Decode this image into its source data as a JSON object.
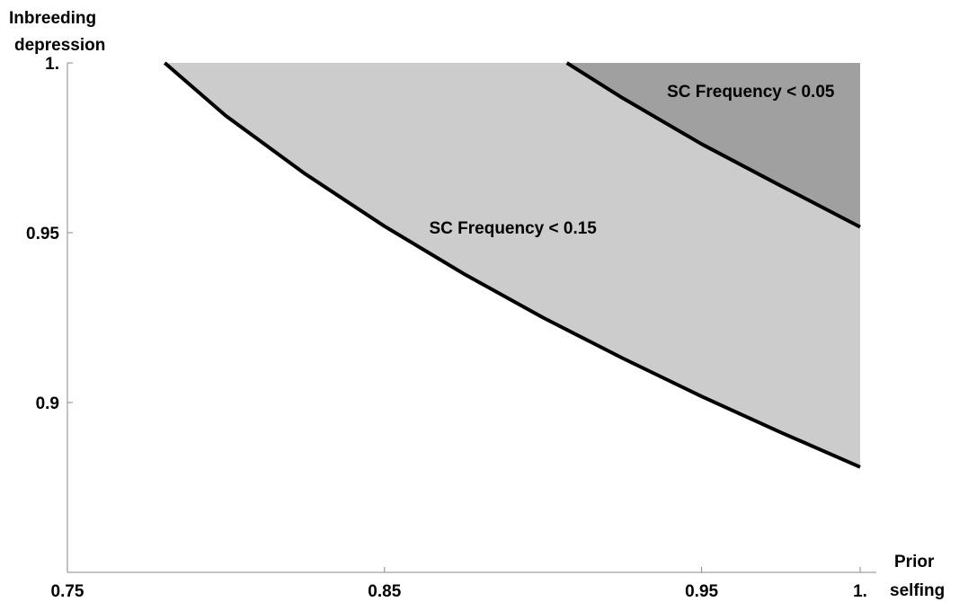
{
  "chart_data": {
    "type": "area",
    "title": "",
    "xlabel_lines": [
      "Prior",
      "selfing"
    ],
    "ylabel_lines": [
      "Inbreeding",
      "depression"
    ],
    "xlim": [
      0.75,
      1.0
    ],
    "ylim": [
      0.85,
      1.0
    ],
    "x_ticks": [
      {
        "value": 0.75,
        "label": "0.75"
      },
      {
        "value": 0.85,
        "label": "0.85"
      },
      {
        "value": 0.95,
        "label": "0.95"
      },
      {
        "value": 1.0,
        "label": "1."
      }
    ],
    "y_ticks": [
      {
        "value": 0.9,
        "label": "0.9"
      },
      {
        "value": 0.95,
        "label": "0.95"
      },
      {
        "value": 1.0,
        "label": "1."
      }
    ],
    "grid": false,
    "legend": "none",
    "series": [
      {
        "name": "SC Frequency < 0.15",
        "fill": "#cccccc",
        "line_color": "#000000",
        "x": [
          0.7807,
          0.8,
          0.825,
          0.85,
          0.875,
          0.9,
          0.925,
          0.95,
          0.975,
          1.0
        ],
        "y": [
          1.0,
          0.9844,
          0.9673,
          0.9519,
          0.9379,
          0.925,
          0.9131,
          0.9018,
          0.8912,
          0.881
        ]
      },
      {
        "name": "SC Frequency < 0.05",
        "fill": "#a0a0a0",
        "line_color": "#000000",
        "x": [
          0.9075,
          0.925,
          0.95,
          0.975,
          1.0
        ],
        "y": [
          1.0,
          0.9897,
          0.9761,
          0.9638,
          0.9517
        ]
      }
    ],
    "annotations": [
      {
        "text": "SC Frequency < 0.15",
        "x": 0.8905,
        "y": 0.9497
      },
      {
        "text": "SC Frequency < 0.05",
        "x": 0.9655,
        "y": 0.9899
      }
    ]
  }
}
